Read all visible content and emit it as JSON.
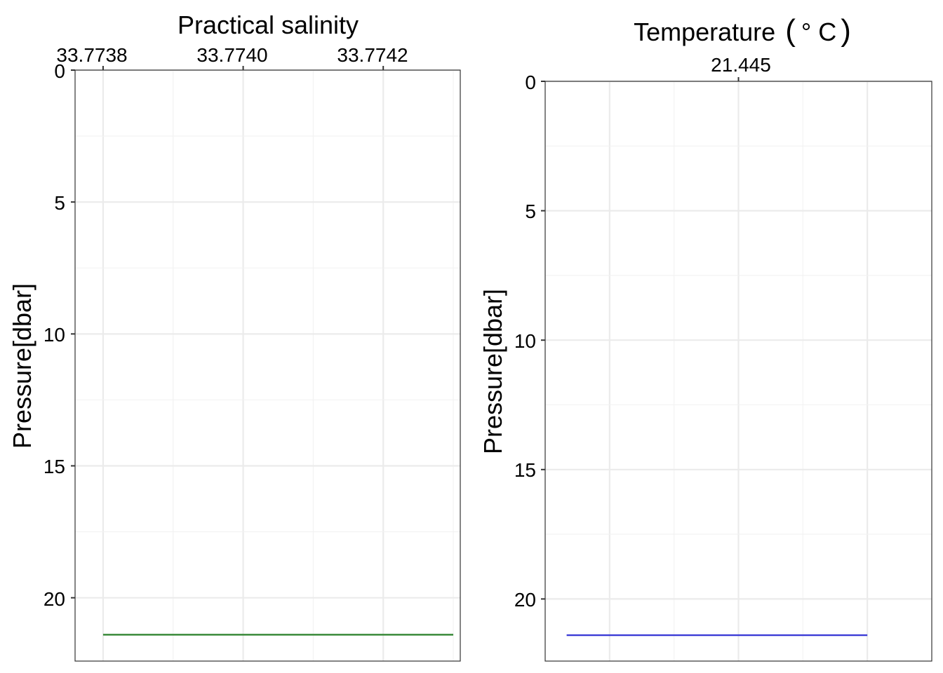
{
  "colors": {
    "salinity_line": "#3a8a3a",
    "temperature_line": "#3b3bd6",
    "grid": "#ebebeb",
    "frame": "#333333"
  },
  "chart_data": [
    {
      "type": "line",
      "title": "Practical salinity",
      "xlabel": "Practical salinity",
      "ylabel": "Pressure[dbar]",
      "x_axis_position": "top",
      "y_reversed": true,
      "grid": true,
      "x_ticks": [
        "33.7738",
        "33.7740",
        "33.7742"
      ],
      "x_tick_values": [
        33.7738,
        33.774,
        33.7742
      ],
      "y_ticks": [
        "0",
        "5",
        "10",
        "15",
        "20"
      ],
      "y_tick_values": [
        0,
        5,
        10,
        15,
        20
      ],
      "xlim": [
        33.77376,
        33.77431
      ],
      "ylim": [
        0,
        22.4
      ],
      "series": [
        {
          "color": "#3a8a3a",
          "x": [
            33.7738,
            33.7743
          ],
          "y": [
            21.4,
            21.4
          ]
        }
      ]
    },
    {
      "type": "line",
      "title": "Temperature (° C)",
      "title_text": "Temperature",
      "title_unit_open": "(",
      "title_unit": "° C",
      "title_unit_close": ")",
      "xlabel": "Temperature (° C)",
      "ylabel": "Pressure[dbar]",
      "x_axis_position": "top",
      "y_reversed": true,
      "grid": true,
      "x_ticks": [
        "21.445"
      ],
      "x_tick_values": [
        21.445
      ],
      "y_ticks": [
        "0",
        "5",
        "10",
        "15",
        "20"
      ],
      "y_tick_values": [
        0,
        5,
        10,
        15,
        20
      ],
      "xlim": [
        21.44455,
        21.44545
      ],
      "ylim": [
        0,
        22.4
      ],
      "series": [
        {
          "color": "#3b3bd6",
          "x": [
            21.4446,
            21.4453
          ],
          "y": [
            21.4,
            21.4
          ]
        }
      ]
    }
  ]
}
